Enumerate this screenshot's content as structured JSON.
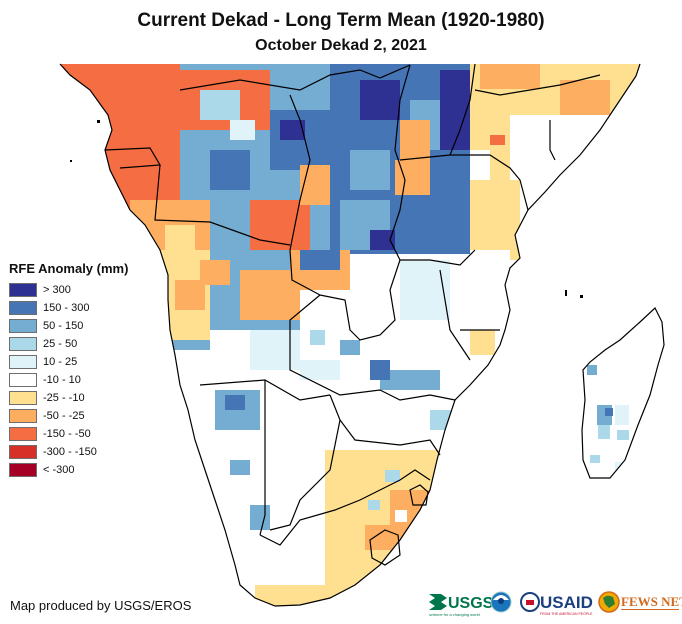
{
  "header": {
    "title": "Current Dekad - Long Term Mean (1920-1980)",
    "subtitle": "October Dekad 2, 2021"
  },
  "legend": {
    "title": "RFE Anomaly (mm)",
    "items": [
      {
        "label": "> 300",
        "color": "#2e3192"
      },
      {
        "label": "150 - 300",
        "color": "#4575b4"
      },
      {
        "label": "50 - 150",
        "color": "#74add1"
      },
      {
        "label": "25 - 50",
        "color": "#abd9e9"
      },
      {
        "label": "10 - 25",
        "color": "#e0f3f8"
      },
      {
        "label": "-10 - 10",
        "color": "#ffffff"
      },
      {
        "label": "-25 - -10",
        "color": "#fee090"
      },
      {
        "label": "-50 - -25",
        "color": "#fdae61"
      },
      {
        "label": "-150 - -50",
        "color": "#f46d43"
      },
      {
        "label": "-300 - -150",
        "color": "#d73027"
      },
      {
        "label": "< -300",
        "color": "#a50026"
      }
    ]
  },
  "map": {
    "region": "Southern and Central Africa",
    "borders_color": "#000000"
  },
  "footer": {
    "credit": "Map produced by USGS/EROS",
    "logos": [
      {
        "name": "USGS",
        "tagline": "science for a changing world"
      },
      {
        "name": "NOAA"
      },
      {
        "name": "USAID",
        "tagline": "FROM THE AMERICAN PEOPLE"
      },
      {
        "name": "FEWS NET"
      }
    ]
  }
}
